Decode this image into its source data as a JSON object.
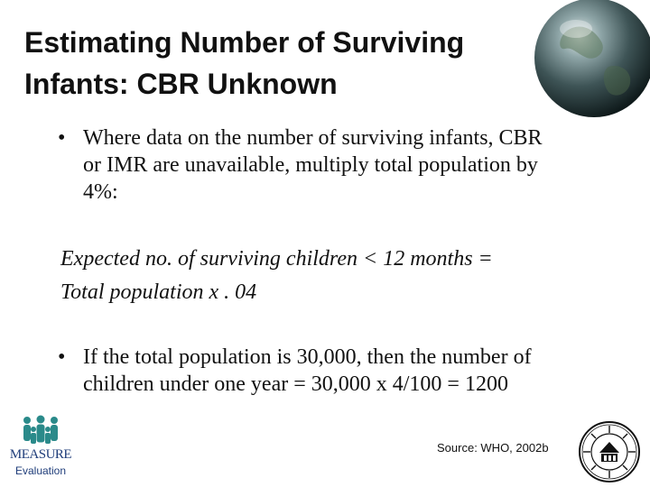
{
  "slide": {
    "title_line1": "Estimating Number of Surviving",
    "title_line2": "Infants: CBR Unknown",
    "bullets": [
      {
        "marker": "•",
        "lines": [
          "Where data on the number of surviving infants, CBR",
          "or IMR are unavailable, multiply total population by",
          "4%:"
        ]
      },
      {
        "marker": "•",
        "lines": [
          "If the total population is 30,000, then the number of",
          "children under one year = 30,000 x 4/100 = 1200"
        ]
      }
    ],
    "formula": {
      "line1": "Expected no. of surviving children < 12 months =",
      "line2": "Total population x . 04"
    },
    "source": "Source: WHO, 2002b"
  },
  "logo": {
    "word": "MEASURE",
    "sub": "Evaluation",
    "icon": "people-group-icon",
    "color": "#2a8a8a"
  },
  "seal": {
    "icon": "university-seal-icon"
  },
  "globe": {
    "icon": "globe-icon"
  }
}
